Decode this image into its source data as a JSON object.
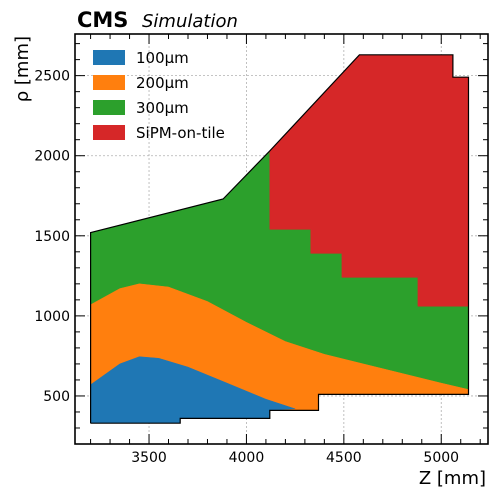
{
  "chart_data": {
    "type": "area",
    "header": {
      "experiment": "CMS",
      "tag": "Simulation"
    },
    "xlabel": "Z [mm]",
    "ylabel": "ρ [mm]",
    "xlim": [
      3120,
      5240
    ],
    "ylim": [
      200,
      2760
    ],
    "xticks": [
      3500,
      4000,
      4500,
      5000
    ],
    "yticks": [
      500,
      1000,
      1500,
      2000,
      2500
    ],
    "grid": true,
    "legend_position": "upper-left",
    "legend": [
      {
        "label": "100μm",
        "color": "#1f77b4"
      },
      {
        "label": "200μm",
        "color": "#ff7f0e"
      },
      {
        "label": "300μm",
        "color": "#2ca02c"
      },
      {
        "label": "SiPM-on-tile",
        "color": "#d62728"
      }
    ],
    "series": [
      {
        "name": "300μm",
        "color": "#2ca02c",
        "polygon": [
          [
            3200,
            330
          ],
          [
            3660,
            330
          ],
          [
            3660,
            360
          ],
          [
            4120,
            360
          ],
          [
            4120,
            410
          ],
          [
            4370,
            410
          ],
          [
            4370,
            510
          ],
          [
            5140,
            510
          ],
          [
            5140,
            2490
          ],
          [
            5060,
            2490
          ],
          [
            5060,
            2630
          ],
          [
            4580,
            2630
          ],
          [
            4120,
            2030
          ],
          [
            3880,
            1730
          ],
          [
            3200,
            1520
          ]
        ]
      },
      {
        "name": "200μm",
        "color": "#ff7f0e",
        "polygon": [
          [
            3200,
            330
          ],
          [
            3660,
            330
          ],
          [
            3660,
            360
          ],
          [
            4120,
            360
          ],
          [
            4120,
            410
          ],
          [
            4370,
            410
          ],
          [
            4370,
            510
          ],
          [
            5140,
            510
          ],
          [
            5140,
            540
          ],
          [
            5000,
            580
          ],
          [
            4800,
            640
          ],
          [
            4600,
            700
          ],
          [
            4400,
            760
          ],
          [
            4200,
            840
          ],
          [
            4000,
            960
          ],
          [
            3800,
            1090
          ],
          [
            3600,
            1180
          ],
          [
            3450,
            1200
          ],
          [
            3350,
            1170
          ],
          [
            3200,
            1070
          ]
        ]
      },
      {
        "name": "100μm",
        "color": "#1f77b4",
        "polygon": [
          [
            3200,
            330
          ],
          [
            3660,
            330
          ],
          [
            3660,
            360
          ],
          [
            4120,
            360
          ],
          [
            4120,
            410
          ],
          [
            4250,
            420
          ],
          [
            4100,
            480
          ],
          [
            3900,
            580
          ],
          [
            3700,
            680
          ],
          [
            3550,
            735
          ],
          [
            3450,
            745
          ],
          [
            3350,
            700
          ],
          [
            3200,
            570
          ]
        ]
      },
      {
        "name": "SiPM-on-tile",
        "color": "#d62728",
        "polygon": [
          [
            4120,
            2030
          ],
          [
            4120,
            1540
          ],
          [
            4330,
            1540
          ],
          [
            4330,
            1390
          ],
          [
            4490,
            1390
          ],
          [
            4490,
            1240
          ],
          [
            4880,
            1240
          ],
          [
            4880,
            1060
          ],
          [
            5140,
            1060
          ],
          [
            5140,
            2490
          ],
          [
            5060,
            2490
          ],
          [
            5060,
            2630
          ],
          [
            4580,
            2630
          ]
        ]
      }
    ],
    "outline": [
      [
        3200,
        330
      ],
      [
        3660,
        330
      ],
      [
        3660,
        360
      ],
      [
        4120,
        360
      ],
      [
        4120,
        410
      ],
      [
        4370,
        410
      ],
      [
        4370,
        510
      ],
      [
        5140,
        510
      ],
      [
        5140,
        2490
      ],
      [
        5060,
        2490
      ],
      [
        5060,
        2630
      ],
      [
        4580,
        2630
      ],
      [
        4120,
        2030
      ],
      [
        3880,
        1730
      ],
      [
        3200,
        1520
      ],
      [
        3200,
        330
      ]
    ]
  }
}
